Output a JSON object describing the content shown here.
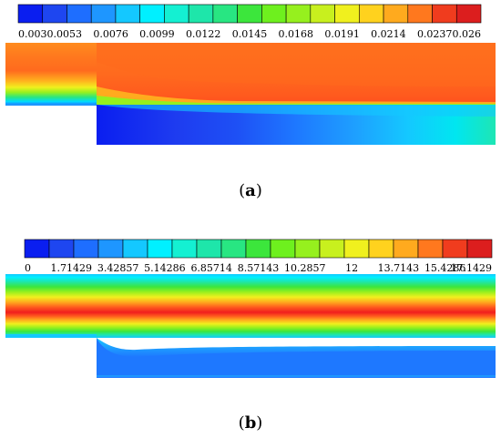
{
  "panels": [
    {
      "id": "a",
      "caption_open": "(",
      "caption_letter": "a",
      "caption_close": ")",
      "colorbar": {
        "colors": [
          "#0a1ef0",
          "#1e46f0",
          "#1e6eff",
          "#1e96ff",
          "#14c8ff",
          "#00f0ff",
          "#14f0d2",
          "#1ee6aa",
          "#28e682",
          "#3ce63c",
          "#6ef01e",
          "#96f01e",
          "#c8f01e",
          "#f0f01e",
          "#ffd21e",
          "#ffaa1e",
          "#ff781e",
          "#f03c1e",
          "#dc1e1e"
        ],
        "tick_labels": [
          "0.003",
          "0.0053",
          "0.0076",
          "0.0099",
          "0.0122",
          "0.0145",
          "0.0168",
          "0.0191",
          "0.0214",
          "0.0237",
          "0.026"
        ]
      },
      "field": {
        "upper_colors": [
          "#ff8a1e",
          "#ff7a1e",
          "#ff6a1e",
          "#ff5a1e"
        ],
        "inlet_wall_colors": [
          "#ffd21e",
          "#c8f01e",
          "#7ef01e",
          "#28e6aa"
        ],
        "lower_colors": [
          "#0a1ef0",
          "#1e3cf0",
          "#1e64ff",
          "#1e8cff",
          "#14b4ff",
          "#00dcff",
          "#14f0d2",
          "#1ee6b4"
        ]
      }
    },
    {
      "id": "b",
      "caption_open": "(",
      "caption_letter": "b",
      "caption_close": ")",
      "colorbar": {
        "colors": [
          "#0a1ef0",
          "#1e46f0",
          "#1e6eff",
          "#1e96ff",
          "#14c8ff",
          "#00f0ff",
          "#14f0d2",
          "#1ee6aa",
          "#28e682",
          "#3ce63c",
          "#6ef01e",
          "#96f01e",
          "#c8f01e",
          "#f0f01e",
          "#ffd21e",
          "#ffaa1e",
          "#ff781e",
          "#f03c1e",
          "#dc1e1e"
        ],
        "tick_labels": [
          "0",
          "1.71429",
          "3.42857",
          "5.14286",
          "6.85714",
          "8.57143",
          "10.2857",
          "12",
          "13.7143",
          "15.4286",
          "17.1429"
        ]
      },
      "field": {
        "band_colors": [
          "#1e96ff",
          "#14c8ff",
          "#00f0ff",
          "#1ee6aa",
          "#3ce63c",
          "#96f01e",
          "#f0f01e",
          "#ffaa1e",
          "#ff5a1e",
          "#f01e1e"
        ],
        "lower_color": "#1e78ff"
      }
    }
  ]
}
